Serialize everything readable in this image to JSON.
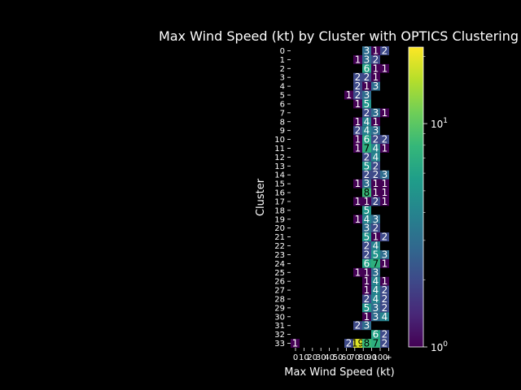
{
  "chart_data": {
    "type": "heatmap",
    "title": "Max Wind Speed (kt) by Cluster with OPTICS Clustering",
    "xlabel": "Max Wind Speed (kt)",
    "ylabel": "Cluster",
    "x_tick_labels": [
      "0",
      "10",
      "20",
      "30",
      "40",
      "50",
      "60",
      "70",
      "80",
      "90",
      "100",
      "+"
    ],
    "y_categories": [
      "0",
      "1",
      "2",
      "3",
      "4",
      "5",
      "6",
      "7",
      "8",
      "9",
      "10",
      "11",
      "12",
      "13",
      "14",
      "15",
      "16",
      "17",
      "18",
      "19",
      "20",
      "21",
      "22",
      "23",
      "24",
      "25",
      "26",
      "27",
      "28",
      "29",
      "30",
      "31",
      "32",
      "33"
    ],
    "colorbar": {
      "scale": "log",
      "min": 1,
      "max": 22,
      "tick_labels": [
        "10^0",
        "10^1"
      ],
      "tick_values": [
        1,
        10
      ]
    },
    "colormap": [
      "#440154",
      "#482878",
      "#3e4989",
      "#31688e",
      "#26828e",
      "#1f9e89",
      "#35b779",
      "#6ece58",
      "#b5de2b",
      "#fde725"
    ],
    "columns": 11,
    "cells": [
      {
        "row": 0,
        "col": 8,
        "v": 3
      },
      {
        "row": 0,
        "col": 9,
        "v": 1
      },
      {
        "row": 0,
        "col": 10,
        "v": 2
      },
      {
        "row": 1,
        "col": 7,
        "v": 1
      },
      {
        "row": 1,
        "col": 8,
        "v": 3
      },
      {
        "row": 1,
        "col": 9,
        "v": 2
      },
      {
        "row": 2,
        "col": 8,
        "v": 6
      },
      {
        "row": 2,
        "col": 9,
        "v": 1
      },
      {
        "row": 2,
        "col": 10,
        "v": 1
      },
      {
        "row": 3,
        "col": 7,
        "v": 2
      },
      {
        "row": 3,
        "col": 8,
        "v": 2
      },
      {
        "row": 3,
        "col": 9,
        "v": 1
      },
      {
        "row": 4,
        "col": 7,
        "v": 2
      },
      {
        "row": 4,
        "col": 8,
        "v": 1
      },
      {
        "row": 4,
        "col": 9,
        "v": 3
      },
      {
        "row": 5,
        "col": 6,
        "v": 1
      },
      {
        "row": 5,
        "col": 7,
        "v": 2
      },
      {
        "row": 5,
        "col": 8,
        "v": 3
      },
      {
        "row": 6,
        "col": 7,
        "v": 1
      },
      {
        "row": 6,
        "col": 8,
        "v": 5
      },
      {
        "row": 7,
        "col": 8,
        "v": 2
      },
      {
        "row": 7,
        "col": 9,
        "v": 3
      },
      {
        "row": 7,
        "col": 10,
        "v": 1
      },
      {
        "row": 8,
        "col": 7,
        "v": 1
      },
      {
        "row": 8,
        "col": 8,
        "v": 4
      },
      {
        "row": 8,
        "col": 9,
        "v": 1
      },
      {
        "row": 9,
        "col": 7,
        "v": 2
      },
      {
        "row": 9,
        "col": 8,
        "v": 4
      },
      {
        "row": 9,
        "col": 9,
        "v": 3
      },
      {
        "row": 10,
        "col": 7,
        "v": 1
      },
      {
        "row": 10,
        "col": 8,
        "v": 6
      },
      {
        "row": 10,
        "col": 9,
        "v": 2
      },
      {
        "row": 10,
        "col": 10,
        "v": 2
      },
      {
        "row": 11,
        "col": 7,
        "v": 1
      },
      {
        "row": 11,
        "col": 8,
        "v": 7
      },
      {
        "row": 11,
        "col": 9,
        "v": 4
      },
      {
        "row": 11,
        "col": 10,
        "v": 1
      },
      {
        "row": 12,
        "col": 8,
        "v": 2
      },
      {
        "row": 12,
        "col": 9,
        "v": 4
      },
      {
        "row": 13,
        "col": 8,
        "v": 5
      },
      {
        "row": 13,
        "col": 9,
        "v": 2
      },
      {
        "row": 14,
        "col": 8,
        "v": 2
      },
      {
        "row": 14,
        "col": 9,
        "v": 2
      },
      {
        "row": 14,
        "col": 10,
        "v": 3
      },
      {
        "row": 15,
        "col": 7,
        "v": 1
      },
      {
        "row": 15,
        "col": 8,
        "v": 3
      },
      {
        "row": 15,
        "col": 9,
        "v": 1
      },
      {
        "row": 15,
        "col": 10,
        "v": 1
      },
      {
        "row": 16,
        "col": 8,
        "v": 8
      },
      {
        "row": 16,
        "col": 9,
        "v": 1
      },
      {
        "row": 16,
        "col": 10,
        "v": 1
      },
      {
        "row": 17,
        "col": 7,
        "v": 1
      },
      {
        "row": 17,
        "col": 8,
        "v": 1
      },
      {
        "row": 17,
        "col": 9,
        "v": 2
      },
      {
        "row": 17,
        "col": 10,
        "v": 1
      },
      {
        "row": 18,
        "col": 8,
        "v": 5
      },
      {
        "row": 19,
        "col": 7,
        "v": 1
      },
      {
        "row": 19,
        "col": 8,
        "v": 4
      },
      {
        "row": 19,
        "col": 9,
        "v": 3
      },
      {
        "row": 20,
        "col": 8,
        "v": 3
      },
      {
        "row": 20,
        "col": 9,
        "v": 2
      },
      {
        "row": 21,
        "col": 8,
        "v": 5
      },
      {
        "row": 21,
        "col": 9,
        "v": 1
      },
      {
        "row": 21,
        "col": 10,
        "v": 2
      },
      {
        "row": 22,
        "col": 8,
        "v": 2
      },
      {
        "row": 22,
        "col": 9,
        "v": 4
      },
      {
        "row": 23,
        "col": 8,
        "v": 2
      },
      {
        "row": 23,
        "col": 9,
        "v": 5
      },
      {
        "row": 23,
        "col": 10,
        "v": 3
      },
      {
        "row": 24,
        "col": 8,
        "v": 6
      },
      {
        "row": 24,
        "col": 9,
        "v": 7
      },
      {
        "row": 24,
        "col": 10,
        "v": 1
      },
      {
        "row": 25,
        "col": 7,
        "v": 1
      },
      {
        "row": 25,
        "col": 8,
        "v": 1
      },
      {
        "row": 25,
        "col": 9,
        "v": 3
      },
      {
        "row": 26,
        "col": 8,
        "v": 1
      },
      {
        "row": 26,
        "col": 9,
        "v": 4
      },
      {
        "row": 26,
        "col": 10,
        "v": 1
      },
      {
        "row": 27,
        "col": 8,
        "v": 1
      },
      {
        "row": 27,
        "col": 9,
        "v": 4
      },
      {
        "row": 27,
        "col": 10,
        "v": 2
      },
      {
        "row": 28,
        "col": 8,
        "v": 2
      },
      {
        "row": 28,
        "col": 9,
        "v": 4
      },
      {
        "row": 28,
        "col": 10,
        "v": 2
      },
      {
        "row": 29,
        "col": 8,
        "v": 5
      },
      {
        "row": 29,
        "col": 9,
        "v": 3
      },
      {
        "row": 29,
        "col": 10,
        "v": 2
      },
      {
        "row": 30,
        "col": 8,
        "v": 1
      },
      {
        "row": 30,
        "col": 9,
        "v": 3
      },
      {
        "row": 30,
        "col": 10,
        "v": 4
      },
      {
        "row": 31,
        "col": 7,
        "v": 2
      },
      {
        "row": 31,
        "col": 8,
        "v": 3
      },
      {
        "row": 32,
        "col": 9,
        "v": 6
      },
      {
        "row": 32,
        "col": 10,
        "v": 2
      },
      {
        "row": 33,
        "col": 0,
        "v": 1
      },
      {
        "row": 33,
        "col": 6,
        "v": 2
      },
      {
        "row": 33,
        "col": 7,
        "v": 19
      },
      {
        "row": 33,
        "col": 8,
        "v": 8
      },
      {
        "row": 33,
        "col": 9,
        "v": 7
      },
      {
        "row": 33,
        "col": 10,
        "v": 2
      }
    ]
  }
}
